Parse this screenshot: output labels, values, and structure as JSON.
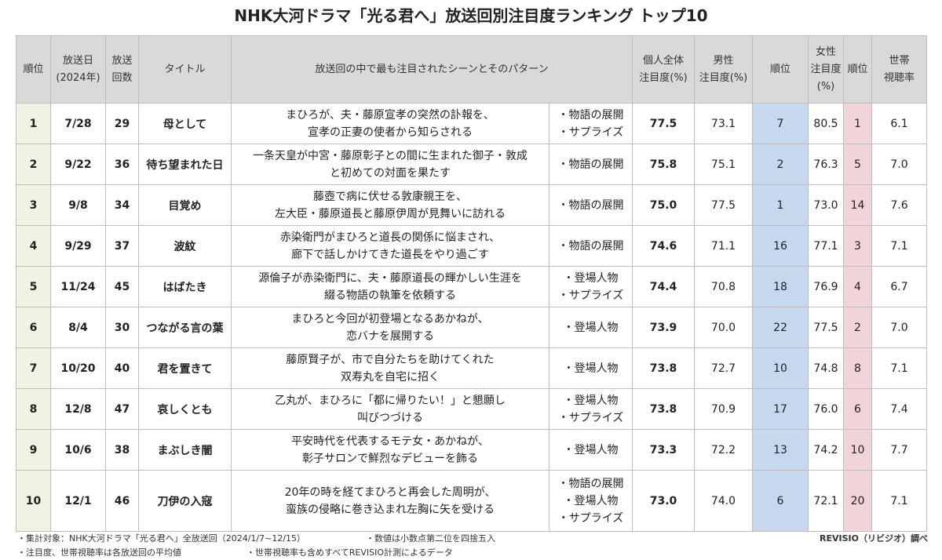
{
  "title": "NHK大河ドラマ「光る君へ」放送回別注目度ランキング トップ10",
  "chart_data": {
    "type": "table",
    "title": "NHK大河ドラマ「光る君へ」放送回別注目度ランキング トップ10",
    "columns": [
      [
        "順位"
      ],
      [
        "放送日",
        "(2024年)"
      ],
      [
        "放送",
        "回数"
      ],
      [
        "タイトル"
      ],
      [
        "放送回の中で最も注目されたシーンとそのパターン"
      ],
      [
        "個人全体",
        "注目度(%)"
      ],
      [
        "男性",
        "注目度(%)"
      ],
      [
        "順位"
      ],
      [
        "女性",
        "注目度(%)"
      ],
      [
        "順位"
      ],
      [
        "世帯",
        "視聴率"
      ]
    ],
    "rows": [
      {
        "rank": "1",
        "date": "7/28",
        "episode": "29",
        "title": "母として",
        "scene": [
          "まひろが、夫・藤原宣孝の突然の訃報を、",
          "宣孝の正妻の使者から知らされる"
        ],
        "tags": [
          "・物語の展開",
          "・サプライズ"
        ],
        "personal": "77.5",
        "male": "73.1",
        "male_rank": "7",
        "female": "80.5",
        "female_rank": "1",
        "household": "6.1"
      },
      {
        "rank": "2",
        "date": "9/22",
        "episode": "36",
        "title": "待ち望まれた日",
        "scene": [
          "一条天皇が中宮・藤原彰子との間に生まれた御子・敦成",
          "と初めての対面を果たす"
        ],
        "tags": [
          "・物語の展開"
        ],
        "personal": "75.8",
        "male": "75.1",
        "male_rank": "2",
        "female": "76.3",
        "female_rank": "5",
        "household": "7.0"
      },
      {
        "rank": "3",
        "date": "9/8",
        "episode": "34",
        "title": "目覚め",
        "scene": [
          "藤壺で病に伏せる敦康親王を、",
          "左大臣・藤原道長と藤原伊周が見舞いに訪れる"
        ],
        "tags": [
          "・物語の展開"
        ],
        "personal": "75.0",
        "male": "77.5",
        "male_rank": "1",
        "female": "73.0",
        "female_rank": "14",
        "household": "7.6"
      },
      {
        "rank": "4",
        "date": "9/29",
        "episode": "37",
        "title": "波紋",
        "scene": [
          "赤染衛門がまひろと道長の関係に悩まされ、",
          "廊下で話しかけてきた道長をやり過ごす"
        ],
        "tags": [
          "・物語の展開"
        ],
        "personal": "74.6",
        "male": "71.1",
        "male_rank": "16",
        "female": "77.1",
        "female_rank": "3",
        "household": "7.1"
      },
      {
        "rank": "5",
        "date": "11/24",
        "episode": "45",
        "title": "はばたき",
        "scene": [
          "源倫子が赤染衛門に、夫・藤原道長の輝かしい生涯を",
          "綴る物語の執筆を依頼する"
        ],
        "tags": [
          "・登場人物",
          "・サプライズ"
        ],
        "personal": "74.4",
        "male": "70.8",
        "male_rank": "18",
        "female": "76.9",
        "female_rank": "4",
        "household": "6.7"
      },
      {
        "rank": "6",
        "date": "8/4",
        "episode": "30",
        "title": "つながる言の葉",
        "scene": [
          "まひろと今回が初登場となるあかねが、",
          "恋バナを展開する"
        ],
        "tags": [
          "・登場人物"
        ],
        "personal": "73.9",
        "male": "70.0",
        "male_rank": "22",
        "female": "77.5",
        "female_rank": "2",
        "household": "7.0"
      },
      {
        "rank": "7",
        "date": "10/20",
        "episode": "40",
        "title": "君を置きて",
        "scene": [
          "藤原賢子が、市で自分たちを助けてくれた",
          "双寿丸を自宅に招く"
        ],
        "tags": [
          "・登場人物"
        ],
        "personal": "73.8",
        "male": "72.7",
        "male_rank": "10",
        "female": "74.8",
        "female_rank": "8",
        "household": "7.1"
      },
      {
        "rank": "8",
        "date": "12/8",
        "episode": "47",
        "title": "哀しくとも",
        "scene": [
          "乙丸が、まひろに「都に帰りたい！」と懇願し",
          "叫びつづける"
        ],
        "tags": [
          "・登場人物",
          "・サプライズ"
        ],
        "personal": "73.8",
        "male": "70.9",
        "male_rank": "17",
        "female": "76.0",
        "female_rank": "6",
        "household": "7.4"
      },
      {
        "rank": "9",
        "date": "10/6",
        "episode": "38",
        "title": "まぶしき闇",
        "scene": [
          "平安時代を代表するモテ女・あかねが、",
          "彰子サロンで鮮烈なデビューを飾る"
        ],
        "tags": [
          "・登場人物"
        ],
        "personal": "73.3",
        "male": "72.2",
        "male_rank": "13",
        "female": "74.2",
        "female_rank": "10",
        "household": "7.7"
      },
      {
        "rank": "10",
        "date": "12/1",
        "episode": "46",
        "title": "刀伊の入寇",
        "scene": [
          "20年の時を経てまひろと再会した周明が、",
          "蛮族の侵略に巻き込まれ左胸に矢を受ける"
        ],
        "tags": [
          "・物語の展開",
          "・登場人物",
          "・サプライズ"
        ],
        "personal": "73.0",
        "male": "74.0",
        "male_rank": "6",
        "female": "72.1",
        "female_rank": "20",
        "household": "7.1"
      }
    ]
  },
  "notes": {
    "n1": "・集計対象：NHK大河ドラマ「光る君へ」全放送回（2024/1/7~12/15）",
    "n2": "・数値は小数点第二位を四捨五入",
    "n3": "・注目度、世帯視聴率は各放送回の平均値",
    "n4": "・世帯視聴率も含めすべてREVISIO計測によるデータ",
    "source": "REVISIO（リビジオ）調べ"
  }
}
